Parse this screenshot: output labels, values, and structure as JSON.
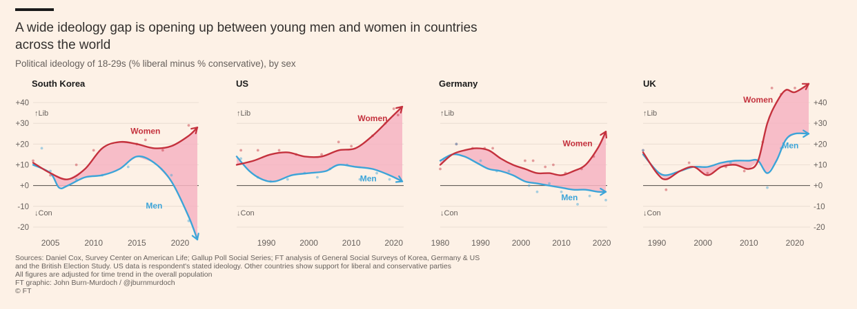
{
  "header": {
    "title": "A wide ideology gap is opening up between young men and women in countries across the world",
    "subtitle": "Political ideology of 18-29s (% liberal minus % conservative), by sex"
  },
  "footer": {
    "lines": [
      "Sources: Daniel Cox, Survey Center on American Life; Gallup Poll Social Series; FT analysis of General Social Surveys of Korea, Germany & US",
      "and the British Election Study. US data is respondent's stated ideology. Other countries show support for liberal and conservative parties",
      "All figures are adjusted for time trend in the overall population",
      "FT graphic: John Burn-Murdoch / @jburnmurdoch",
      "© FT"
    ]
  },
  "colors": {
    "women": "#c4313d",
    "men": "#3ca4d8",
    "gap_fill": "#f6b4c2",
    "axis_text": "#66605c",
    "grid": "#e6d9ce"
  },
  "chart_data": [
    {
      "type": "line",
      "title": "South Korea",
      "x_ticks": [
        2005,
        2010,
        2015,
        2020
      ],
      "xlim": [
        2003,
        2022
      ],
      "ylim": [
        -25,
        40
      ],
      "y_ticks": [
        "+40",
        "+30",
        "+20",
        "+10",
        "+0",
        "-10",
        "-20"
      ],
      "y_tick_values": [
        40,
        30,
        20,
        10,
        0,
        -10,
        -20
      ],
      "y_axis_side": "left",
      "lib_label": "↑Lib",
      "con_label": "↓Con",
      "series": [
        {
          "name": "Women",
          "x": [
            2003,
            2005,
            2007,
            2009,
            2011,
            2013,
            2015,
            2017,
            2019,
            2021,
            2022
          ],
          "y": [
            11,
            6,
            3,
            8,
            18,
            21,
            20,
            18,
            19,
            24,
            28
          ]
        },
        {
          "name": "Men",
          "x": [
            2003,
            2005,
            2006,
            2007,
            2009,
            2011,
            2013,
            2015,
            2017,
            2019,
            2021,
            2022
          ],
          "y": [
            10,
            6,
            -1,
            0,
            4,
            5,
            8,
            14,
            11,
            2,
            -15,
            -26
          ]
        }
      ],
      "points_women": [
        [
          2003,
          12
        ],
        [
          2005,
          5
        ],
        [
          2008,
          10
        ],
        [
          2010,
          17
        ],
        [
          2015,
          20
        ],
        [
          2016,
          22
        ],
        [
          2018,
          17
        ],
        [
          2021,
          29
        ]
      ],
      "points_men": [
        [
          2004,
          18
        ],
        [
          2005,
          7
        ],
        [
          2008,
          3
        ],
        [
          2011,
          5
        ],
        [
          2014,
          9
        ],
        [
          2019,
          5
        ],
        [
          2021,
          -17
        ]
      ]
    },
    {
      "type": "line",
      "title": "US",
      "x_ticks": [
        1990,
        2000,
        2010,
        2020
      ],
      "xlim": [
        1983,
        2022
      ],
      "ylim": [
        -25,
        40
      ],
      "y_ticks": [],
      "y_tick_values": [
        40,
        30,
        20,
        10,
        0,
        -10,
        -20
      ],
      "y_axis_side": "none",
      "lib_label": "↑Lib",
      "con_label": "↓Con",
      "series": [
        {
          "name": "Women",
          "x": [
            1983,
            1987,
            1991,
            1995,
            1999,
            2003,
            2007,
            2011,
            2015,
            2019,
            2022
          ],
          "y": [
            10,
            12,
            15,
            16,
            14,
            14,
            17,
            18,
            24,
            32,
            38
          ]
        },
        {
          "name": "Men",
          "x": [
            1983,
            1986,
            1989,
            1992,
            1996,
            2000,
            2004,
            2007,
            2011,
            2015,
            2019,
            2022
          ],
          "y": [
            14,
            7,
            3,
            2,
            5,
            6,
            7,
            10,
            9,
            8,
            5,
            2
          ]
        }
      ],
      "points_women": [
        [
          1984,
          17
        ],
        [
          1988,
          17
        ],
        [
          1993,
          17
        ],
        [
          1997,
          15
        ],
        [
          2003,
          15
        ],
        [
          2007,
          21
        ],
        [
          2010,
          19
        ],
        [
          2015,
          24
        ],
        [
          2018,
          30
        ],
        [
          2020,
          37
        ],
        [
          2021,
          34
        ]
      ],
      "points_men": [
        [
          1984,
          13
        ],
        [
          1988,
          4
        ],
        [
          1991,
          2
        ],
        [
          1995,
          3
        ],
        [
          1999,
          6
        ],
        [
          2002,
          4
        ],
        [
          2005,
          8
        ],
        [
          2009,
          10
        ],
        [
          2012,
          3
        ],
        [
          2016,
          6
        ],
        [
          2019,
          3
        ]
      ]
    },
    {
      "type": "line",
      "title": "Germany",
      "x_ticks": [
        1980,
        1990,
        2000,
        2010,
        2020
      ],
      "xlim": [
        1980,
        2021
      ],
      "ylim": [
        -25,
        40
      ],
      "y_ticks": [],
      "y_tick_values": [
        40,
        30,
        20,
        10,
        0,
        -10,
        -20
      ],
      "y_axis_side": "none",
      "lib_label": "↑Lib",
      "con_label": "↓Con",
      "series": [
        {
          "name": "Women",
          "x": [
            1980,
            1983,
            1986,
            1989,
            1992,
            1995,
            1998,
            2001,
            2004,
            2007,
            2010,
            2013,
            2016,
            2019,
            2021
          ],
          "y": [
            10,
            15,
            17,
            18,
            17,
            13,
            10,
            8,
            6,
            6,
            5,
            7,
            10,
            18,
            26
          ]
        },
        {
          "name": "Men",
          "x": [
            1980,
            1983,
            1986,
            1989,
            1992,
            1995,
            1998,
            2001,
            2004,
            2007,
            2010,
            2013,
            2016,
            2019,
            2021
          ],
          "y": [
            12,
            15,
            14,
            11,
            8,
            7,
            5,
            2,
            1,
            0,
            -1,
            -2,
            -2,
            -3,
            -3
          ]
        }
      ],
      "points_women": [
        [
          1980,
          8
        ],
        [
          1984,
          20
        ],
        [
          1988,
          18
        ],
        [
          1991,
          18
        ],
        [
          1993,
          18
        ],
        [
          2001,
          12
        ],
        [
          2003,
          12
        ],
        [
          2006,
          9
        ],
        [
          2008,
          10
        ],
        [
          2011,
          6
        ],
        [
          2015,
          8
        ],
        [
          2018,
          14
        ]
      ],
      "points_men": [
        [
          1981,
          12
        ],
        [
          1984,
          20
        ],
        [
          1990,
          12
        ],
        [
          1994,
          7
        ],
        [
          1997,
          7
        ],
        [
          2002,
          0
        ],
        [
          2004,
          -3
        ],
        [
          2007,
          1
        ],
        [
          2010,
          -3
        ],
        [
          2014,
          -9
        ],
        [
          2017,
          -5
        ],
        [
          2021,
          -7
        ]
      ]
    },
    {
      "type": "line",
      "title": "UK",
      "x_ticks": [
        1990,
        2000,
        2010,
        2020
      ],
      "xlim": [
        1987,
        2023
      ],
      "ylim": [
        -25,
        40
      ],
      "y_ticks": [
        "+40",
        "+30",
        "+20",
        "+10",
        "+0",
        "-10",
        "-20"
      ],
      "y_tick_values": [
        40,
        30,
        20,
        10,
        0,
        -10,
        -20
      ],
      "y_axis_side": "right",
      "lib_label": "↑Lib",
      "con_label": "↓Con",
      "series": [
        {
          "name": "Women",
          "x": [
            1987,
            1990,
            1992,
            1995,
            1998,
            2001,
            2004,
            2007,
            2010,
            2012,
            2014,
            2016,
            2018,
            2020,
            2023
          ],
          "y": [
            16,
            6,
            3,
            7,
            9,
            5,
            9,
            10,
            8,
            12,
            30,
            40,
            46,
            45,
            49
          ]
        },
        {
          "name": "Men",
          "x": [
            1987,
            1990,
            1992,
            1995,
            1998,
            2001,
            2004,
            2007,
            2010,
            2012,
            2014,
            2016,
            2018,
            2020,
            2023
          ],
          "y": [
            15,
            7,
            5,
            7,
            9,
            9,
            11,
            12,
            12,
            12,
            6,
            12,
            22,
            25,
            25
          ]
        }
      ],
      "points_women": [
        [
          1987,
          17
        ],
        [
          1992,
          -2
        ],
        [
          1997,
          11
        ],
        [
          2001,
          6
        ],
        [
          2005,
          9
        ],
        [
          2009,
          7
        ],
        [
          2013,
          21
        ],
        [
          2015,
          47
        ],
        [
          2017,
          44
        ],
        [
          2020,
          47
        ]
      ],
      "points_men": [
        [
          1987,
          17
        ],
        [
          1994,
          6
        ],
        [
          2006,
          11
        ],
        [
          2014,
          -1
        ],
        [
          2017,
          18
        ]
      ]
    }
  ],
  "labels": {
    "women": [
      {
        "panel": 0,
        "text": "Women",
        "at": [
          2016,
          25
        ]
      },
      {
        "panel": 1,
        "text": "Women",
        "at": [
          2015,
          31
        ]
      },
      {
        "panel": 2,
        "text": "Women",
        "at": [
          2014,
          19
        ]
      },
      {
        "panel": 3,
        "text": "Women",
        "at": [
          2012,
          40
        ]
      }
    ],
    "men": [
      {
        "panel": 0,
        "text": "Men",
        "at": [
          2017,
          -11
        ]
      },
      {
        "panel": 1,
        "text": "Men",
        "at": [
          2014,
          2
        ]
      },
      {
        "panel": 2,
        "text": "Men",
        "at": [
          2012,
          -7
        ]
      },
      {
        "panel": 3,
        "text": "Men",
        "at": [
          2019,
          18
        ]
      }
    ]
  }
}
